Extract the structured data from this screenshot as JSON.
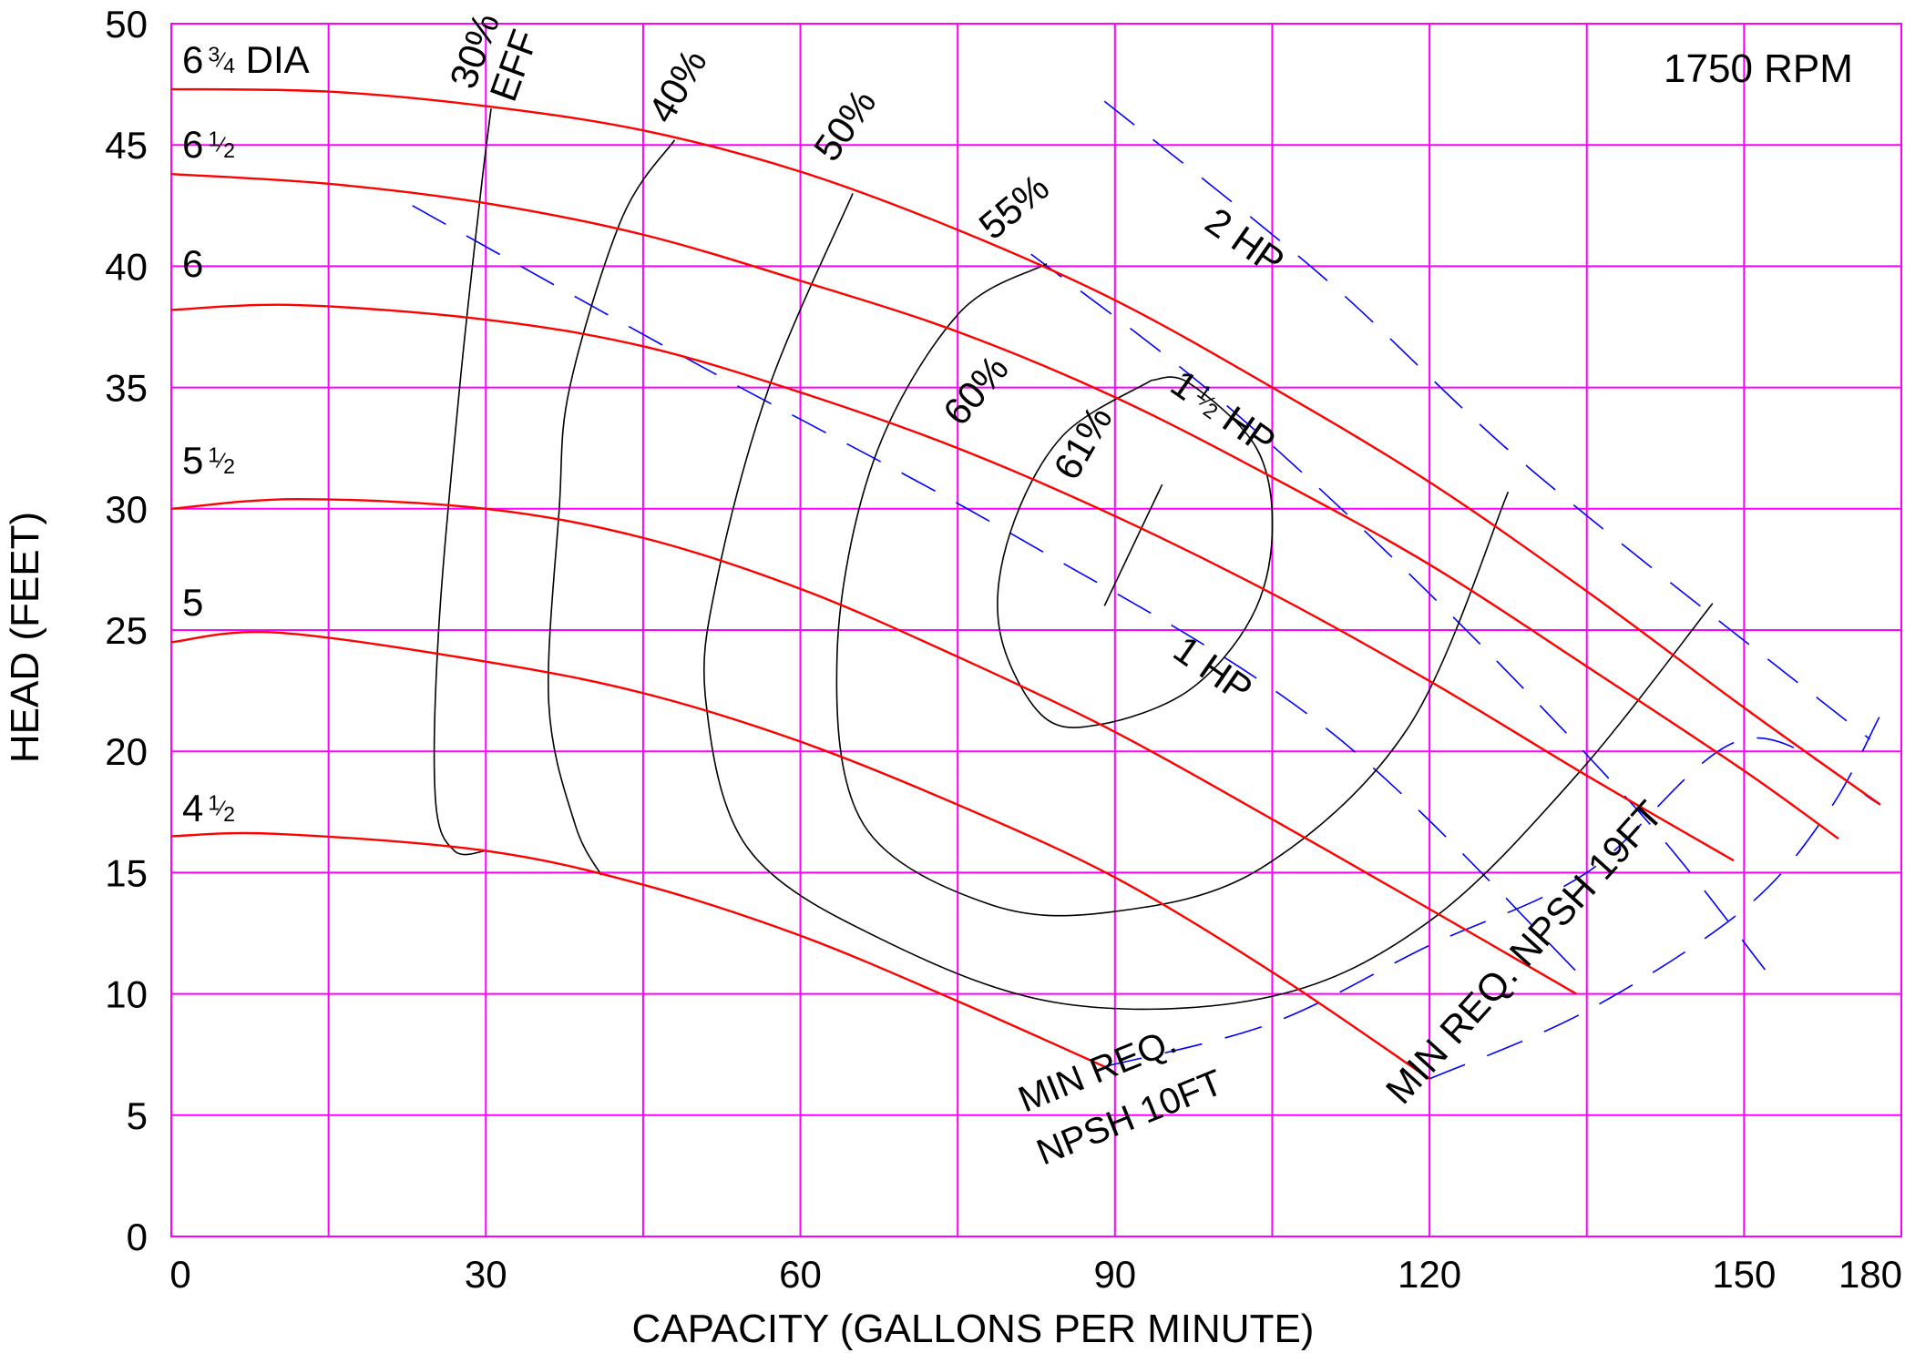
{
  "chart_data": {
    "type": "line",
    "title": "",
    "xlabel": "CAPACITY (GALLONS PER MINUTE)",
    "ylabel": "HEAD (FEET)",
    "xlim": [
      0,
      165
    ],
    "ylim": [
      0,
      50
    ],
    "x_ticks": [
      0,
      30,
      60,
      90,
      120,
      150,
      180
    ],
    "y_ticks": [
      0,
      5,
      10,
      15,
      20,
      25,
      30,
      35,
      40,
      45,
      50
    ],
    "x_tick_labels": [
      "0",
      "30",
      "60",
      "90",
      "120",
      "150",
      "180"
    ],
    "y_tick_labels": [
      "0",
      "5",
      "10",
      "15",
      "20",
      "25",
      "30",
      "35",
      "40",
      "45",
      "50"
    ],
    "grid": true,
    "speed_label": "1750 RPM",
    "colors": {
      "grid": "#ff00ff",
      "head_curve": "#ff0000",
      "efficiency": "#000000",
      "power": "#0000ff"
    },
    "series": [
      {
        "name": "6 3/4 DIA",
        "label_whole": "6",
        "label_frac_num": "3",
        "label_frac_den": "4",
        "label_suffix": "DIA",
        "x": [
          0,
          15,
          30,
          45,
          60,
          75,
          90,
          105,
          120,
          135,
          150,
          163
        ],
        "y": [
          47.3,
          47.2,
          46.6,
          45.6,
          43.9,
          41.5,
          38.6,
          35.0,
          31.1,
          26.6,
          21.8,
          17.8
        ]
      },
      {
        "name": "6 1/2",
        "label_whole": "6",
        "label_frac_num": "1",
        "label_frac_den": "2",
        "label_suffix": "",
        "x": [
          0,
          15,
          30,
          45,
          60,
          75,
          90,
          105,
          120,
          135,
          150,
          159
        ],
        "y": [
          43.8,
          43.4,
          42.6,
          41.3,
          39.4,
          37.3,
          34.6,
          31.3,
          27.7,
          23.5,
          19.2,
          16.4
        ]
      },
      {
        "name": "6",
        "label_whole": "6",
        "label_frac_num": "",
        "label_frac_den": "",
        "label_suffix": "",
        "x": [
          0,
          12,
          30,
          45,
          60,
          75,
          90,
          105,
          120,
          135,
          149
        ],
        "y": [
          38.2,
          38.4,
          37.8,
          36.7,
          34.8,
          32.5,
          29.7,
          26.5,
          22.9,
          19.0,
          15.5
        ]
      },
      {
        "name": "5 1/2",
        "label_whole": "5",
        "label_frac_num": "1",
        "label_frac_den": "2",
        "label_suffix": "",
        "x": [
          0,
          12,
          30,
          45,
          60,
          75,
          90,
          105,
          120,
          134
        ],
        "y": [
          30.0,
          30.4,
          30.0,
          28.8,
          26.7,
          23.9,
          20.8,
          17.2,
          13.5,
          10.0
        ]
      },
      {
        "name": "5",
        "label_whole": "5",
        "label_frac_num": "",
        "label_frac_den": "",
        "label_suffix": "",
        "x": [
          0,
          10,
          30,
          45,
          60,
          75,
          90,
          105,
          120
        ],
        "y": [
          24.5,
          24.9,
          23.7,
          22.4,
          20.4,
          17.8,
          14.8,
          10.9,
          6.5
        ]
      },
      {
        "name": "4 1/2",
        "label_whole": "4",
        "label_frac_num": "1",
        "label_frac_den": "2",
        "label_suffix": "",
        "x": [
          0,
          10,
          30,
          45,
          60,
          75,
          89
        ],
        "y": [
          16.5,
          16.6,
          15.9,
          14.5,
          12.4,
          9.7,
          7.0
        ]
      }
    ],
    "efficiency_curves": [
      {
        "name": "30%",
        "label": "30%",
        "label2": "EFF",
        "x": [
          30.5,
          29.5,
          27.5,
          25.5,
          25.2,
          27.0,
          30.0
        ],
        "y": [
          46.5,
          43.0,
          35.0,
          25.0,
          18.0,
          15.9,
          15.9
        ]
      },
      {
        "name": "40%",
        "label": "40%",
        "label2": "",
        "x": [
          48.0,
          43.0,
          38.0,
          37.0,
          36.0,
          38.5,
          41.0
        ],
        "y": [
          45.2,
          42.0,
          35.0,
          30.0,
          22.0,
          17.0,
          14.9
        ]
      },
      {
        "name": "50%",
        "label": "50%",
        "label2": "",
        "x": [
          65.0,
          57.0,
          52.0,
          51.0,
          55.0,
          67.5,
          85.0,
          105.0,
          120.0,
          134.0,
          147.0
        ],
        "y": [
          43.0,
          35.0,
          27.0,
          22.0,
          16.0,
          12.3,
          9.6,
          9.9,
          13.0,
          19.0,
          26.1
        ]
      },
      {
        "name": "55%",
        "label": "55%",
        "label2": "",
        "x": [
          83.5,
          75.0,
          67.0,
          63.5,
          66.0,
          78.0,
          90.0,
          104.0,
          118.0,
          127.5
        ],
        "y": [
          40.1,
          38.0,
          32.0,
          24.0,
          17.0,
          13.7,
          13.4,
          15.2,
          21.0,
          30.7
        ]
      },
      {
        "name": "60%",
        "label": "60%",
        "label2": "",
        "x": [
          93.5,
          85.0,
          80.0,
          79.0,
          83.0,
          88.5,
          97.0,
          103.0,
          105.0,
          103.5,
          97.0,
          93.5
        ],
        "y": [
          35.3,
          33.0,
          29.0,
          25.0,
          21.5,
          21.1,
          22.5,
          25.5,
          29.0,
          32.5,
          35.2,
          35.3
        ]
      },
      {
        "name": "61%",
        "label": "61%",
        "label2": "",
        "x": [
          94.5,
          89.0
        ],
        "y": [
          31.0,
          26.0
        ]
      }
    ],
    "power_curves": [
      {
        "name": "2 HP",
        "label_whole": "2",
        "label_frac_num": "",
        "label_frac_den": "",
        "label_suffix": "HP",
        "x": [
          89,
          110,
          130,
          162
        ],
        "y": [
          46.8,
          39.5,
          31.5,
          20.5
        ]
      },
      {
        "name": "1 1/2 HP",
        "label_whole": "1",
        "label_frac_num": "1",
        "label_frac_den": "2",
        "label_suffix": "HP",
        "x": [
          82,
          100,
          120,
          140,
          152
        ],
        "y": [
          40.5,
          34.5,
          26.5,
          17.5,
          11.0
        ]
      },
      {
        "name": "1 HP",
        "label_whole": "1",
        "label_frac_num": "",
        "label_frac_den": "",
        "label_suffix": "HP",
        "x": [
          23,
          50,
          80,
          110,
          135
        ],
        "y": [
          42.5,
          36.0,
          29.0,
          21.0,
          10.5
        ]
      }
    ],
    "npsh_curves": [
      {
        "name": "MIN REQ. NPSH 10FT",
        "label_line1": "MIN REQ.",
        "label_line2": "NPSH 10FT",
        "x": [
          89,
          105,
          120,
          135,
          150,
          163
        ],
        "y": [
          7.0,
          8.8,
          12.0,
          15.0,
          20.5,
          17.8
        ]
      },
      {
        "name": "MIN REQ. NPSH 19FT",
        "label_line1": "MIN REQ. NPSH 19FT",
        "label_line2": "",
        "x": [
          120,
          135,
          150,
          158,
          163
        ],
        "y": [
          6.5,
          9.3,
          13.5,
          17.5,
          21.5
        ]
      }
    ]
  }
}
